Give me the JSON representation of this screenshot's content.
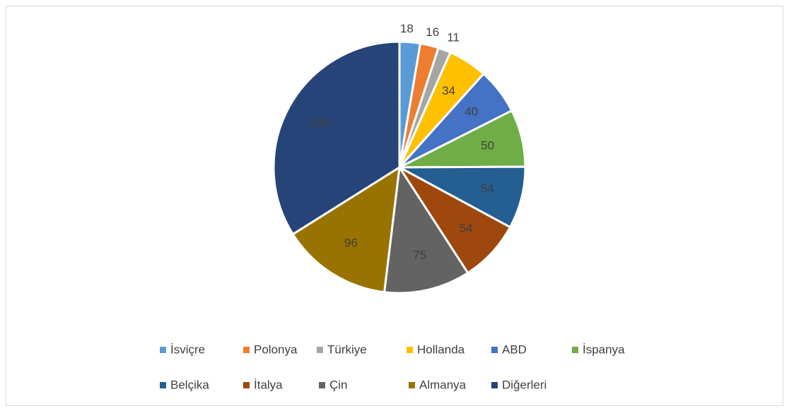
{
  "chart_data": {
    "type": "pie",
    "categories": [
      "İsviçre",
      "Polonya",
      "Türkiye",
      "Hollanda",
      "ABD",
      "İspanya",
      "Belçika",
      "İtalya",
      "Çin",
      "Almanya",
      "Diğerleri"
    ],
    "values": [
      18,
      16,
      11,
      34,
      40,
      50,
      54,
      54,
      75,
      96,
      230
    ],
    "colors": [
      "#5b9bd5",
      "#ed7d31",
      "#a5a5a5",
      "#ffc000",
      "#4472c4",
      "#70ad47",
      "#255e91",
      "#9e480e",
      "#636363",
      "#997300",
      "#264478"
    ],
    "legend": "bottom"
  }
}
